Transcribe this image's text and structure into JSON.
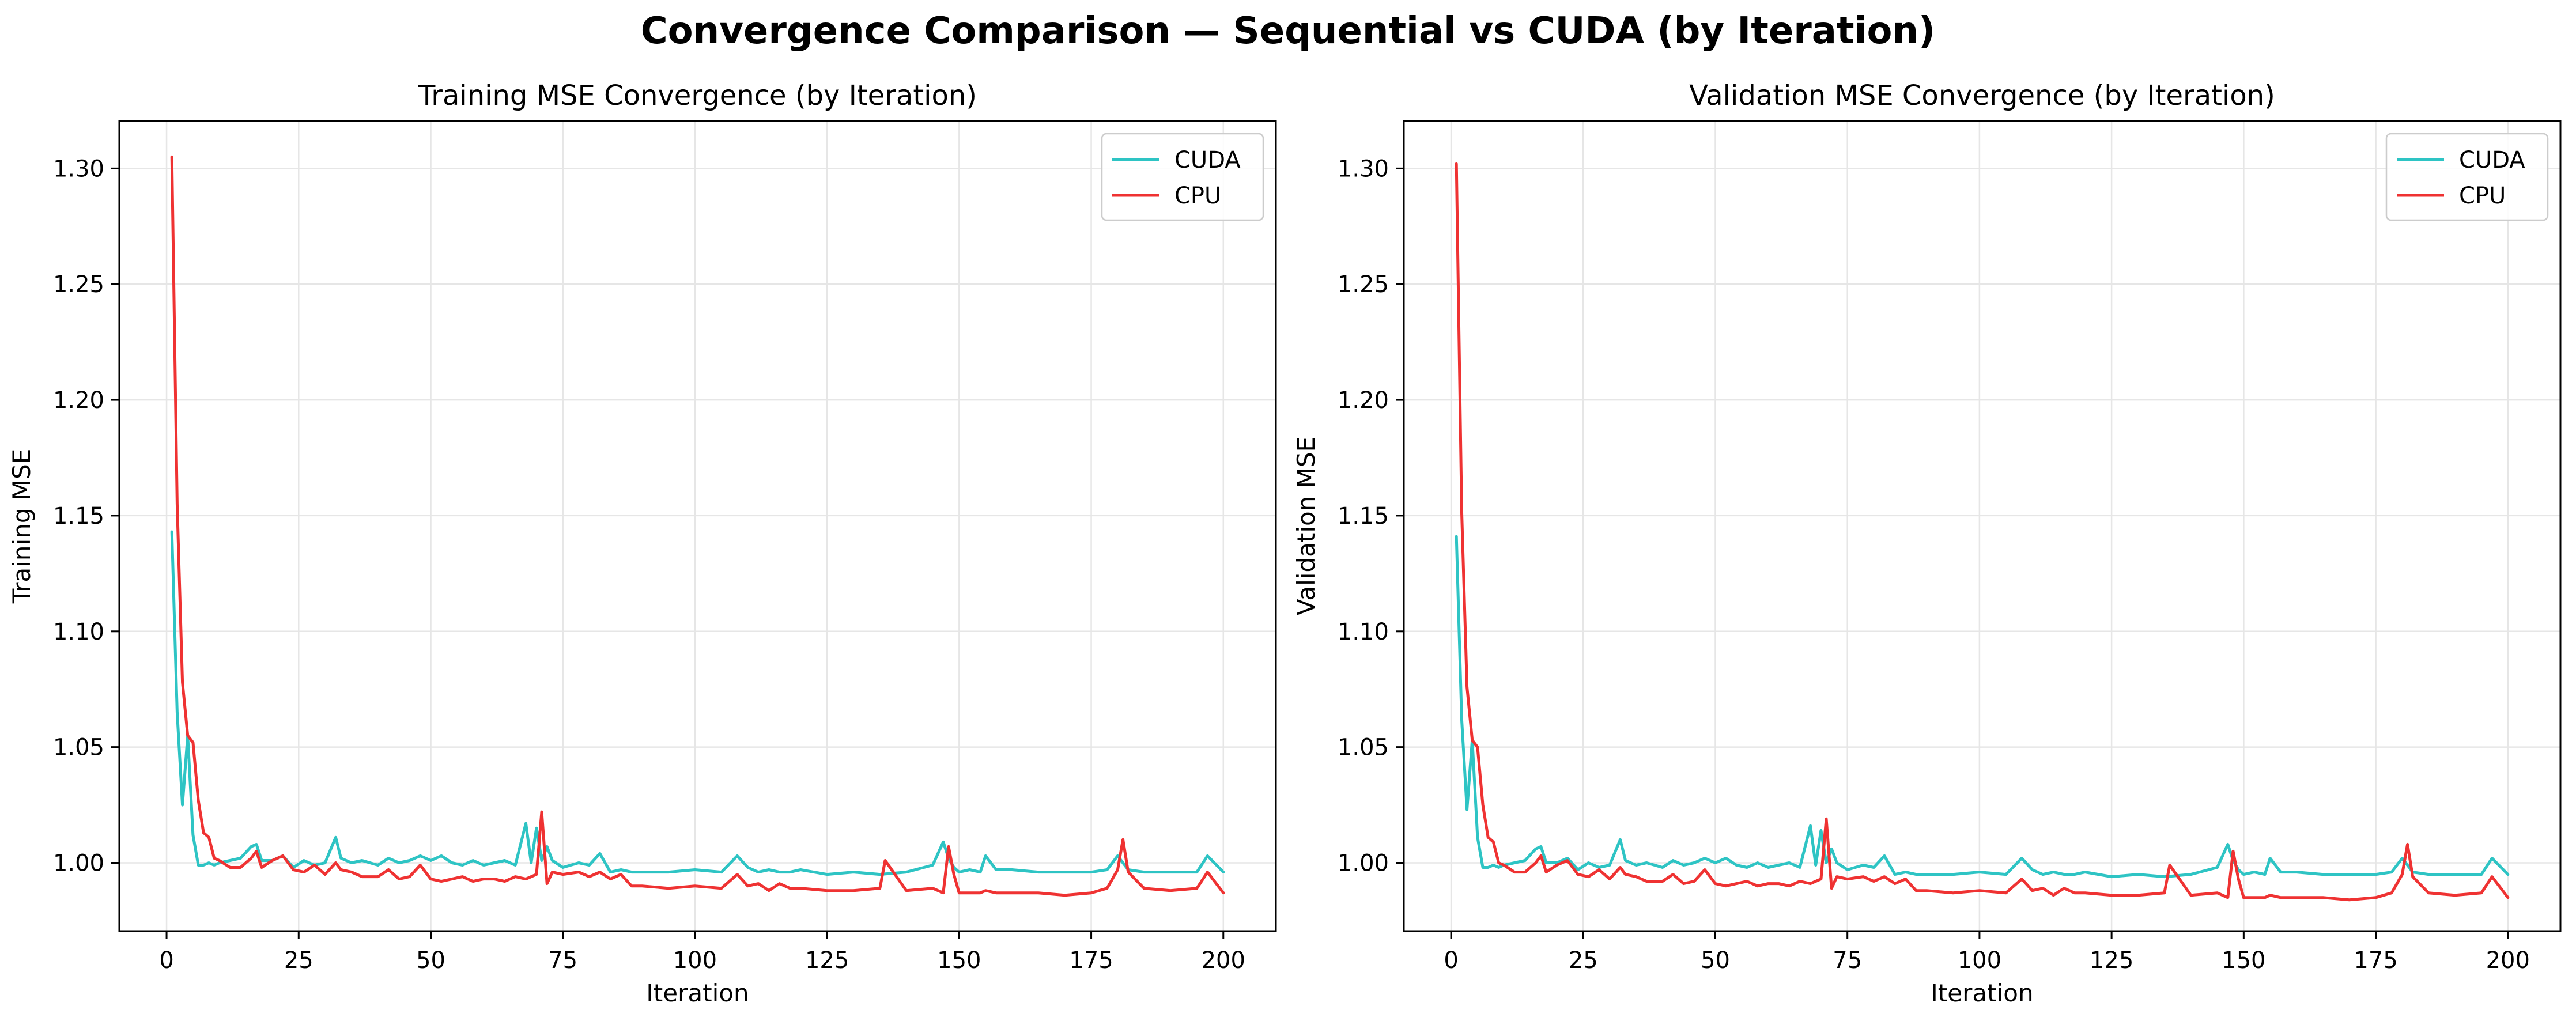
{
  "figure": {
    "suptitle": "Convergence Comparison — Sequential vs CUDA (by Iteration)"
  },
  "colors": {
    "CUDA": "#2ec4c4",
    "CPU": "#ef3232",
    "grid": "#e6e6e6",
    "axis": "#000000"
  },
  "chart_data": [
    {
      "type": "line",
      "title": "Training MSE Convergence (by Iteration)",
      "xlabel": "Iteration",
      "ylabel": "Training MSE",
      "xlim": [
        -8.95,
        209.95
      ],
      "ylim": [
        0.9705,
        1.3205
      ],
      "xticks": [
        0,
        25,
        50,
        75,
        100,
        125,
        150,
        175,
        200
      ],
      "yticks": [
        1.0,
        1.05,
        1.1,
        1.15,
        1.2,
        1.25,
        1.3
      ],
      "ytick_labels": [
        "1.00",
        "1.05",
        "1.10",
        "1.15",
        "1.20",
        "1.25",
        "1.30"
      ],
      "grid": true,
      "legend": "top-right",
      "series": [
        {
          "name": "CUDA",
          "x": [
            1,
            2,
            3,
            4,
            5,
            6,
            7,
            8,
            9,
            10,
            12,
            14,
            16,
            17,
            18,
            20,
            22,
            24,
            26,
            28,
            30,
            32,
            33,
            35,
            37,
            40,
            42,
            44,
            46,
            48,
            50,
            52,
            54,
            56,
            58,
            60,
            62,
            64,
            66,
            68,
            69,
            70,
            71,
            72,
            73,
            75,
            78,
            80,
            82,
            84,
            86,
            88,
            90,
            95,
            100,
            105,
            108,
            110,
            112,
            114,
            116,
            118,
            120,
            125,
            130,
            135,
            140,
            145,
            147,
            148,
            149,
            150,
            152,
            154,
            155,
            157,
            160,
            165,
            170,
            175,
            178,
            180,
            182,
            185,
            190,
            195,
            197,
            200
          ],
          "values": [
            1.143,
            1.065,
            1.025,
            1.055,
            1.012,
            0.999,
            0.999,
            1.0,
            0.999,
            1.0,
            1.001,
            1.002,
            1.007,
            1.008,
            1.001,
            1.001,
            1.003,
            0.998,
            1.001,
            0.999,
            1.0,
            1.011,
            1.002,
            1.0,
            1.001,
            0.999,
            1.002,
            1.0,
            1.001,
            1.003,
            1.001,
            1.003,
            1.0,
            0.999,
            1.001,
            0.999,
            1.0,
            1.001,
            0.999,
            1.017,
            1.0,
            1.015,
            1.001,
            1.007,
            1.001,
            0.998,
            1.0,
            0.999,
            1.004,
            0.996,
            0.997,
            0.996,
            0.996,
            0.996,
            0.997,
            0.996,
            1.003,
            0.998,
            0.996,
            0.997,
            0.996,
            0.996,
            0.997,
            0.995,
            0.996,
            0.995,
            0.996,
            0.999,
            1.009,
            1.002,
            0.998,
            0.996,
            0.997,
            0.996,
            1.003,
            0.997,
            0.997,
            0.996,
            0.996,
            0.996,
            0.997,
            1.003,
            0.997,
            0.996,
            0.996,
            0.996,
            1.003,
            0.996
          ]
        },
        {
          "name": "CPU",
          "x": [
            1,
            2,
            3,
            4,
            5,
            6,
            7,
            8,
            9,
            10,
            12,
            14,
            16,
            17,
            18,
            20,
            22,
            24,
            26,
            28,
            30,
            32,
            33,
            35,
            37,
            40,
            42,
            44,
            46,
            48,
            50,
            52,
            54,
            56,
            58,
            60,
            62,
            64,
            66,
            68,
            70,
            71,
            72,
            73,
            75,
            78,
            80,
            82,
            84,
            86,
            88,
            90,
            95,
            100,
            105,
            108,
            110,
            112,
            114,
            116,
            118,
            120,
            125,
            130,
            135,
            136,
            140,
            145,
            147,
            148,
            149,
            150,
            152,
            154,
            155,
            157,
            160,
            165,
            170,
            175,
            178,
            180,
            181,
            182,
            185,
            190,
            195,
            197,
            200
          ],
          "values": [
            1.305,
            1.155,
            1.078,
            1.055,
            1.052,
            1.027,
            1.013,
            1.011,
            1.002,
            1.001,
            0.998,
            0.998,
            1.002,
            1.005,
            0.998,
            1.001,
            1.003,
            0.997,
            0.996,
            0.999,
            0.995,
            1.0,
            0.997,
            0.996,
            0.994,
            0.994,
            0.997,
            0.993,
            0.994,
            0.999,
            0.993,
            0.992,
            0.993,
            0.994,
            0.992,
            0.993,
            0.993,
            0.992,
            0.994,
            0.993,
            0.995,
            1.022,
            0.991,
            0.996,
            0.995,
            0.996,
            0.994,
            0.996,
            0.993,
            0.995,
            0.99,
            0.99,
            0.989,
            0.99,
            0.989,
            0.995,
            0.99,
            0.991,
            0.988,
            0.991,
            0.989,
            0.989,
            0.988,
            0.988,
            0.989,
            1.001,
            0.988,
            0.989,
            0.987,
            1.007,
            0.995,
            0.987,
            0.987,
            0.987,
            0.988,
            0.987,
            0.987,
            0.987,
            0.986,
            0.987,
            0.989,
            0.997,
            1.01,
            0.996,
            0.989,
            0.988,
            0.989,
            0.996,
            0.987
          ]
        }
      ]
    },
    {
      "type": "line",
      "title": "Validation MSE Convergence (by Iteration)",
      "xlabel": "Iteration",
      "ylabel": "Validation MSE",
      "xlim": [
        -8.95,
        209.95
      ],
      "ylim": [
        0.9705,
        1.3205
      ],
      "xticks": [
        0,
        25,
        50,
        75,
        100,
        125,
        150,
        175,
        200
      ],
      "yticks": [
        1.0,
        1.05,
        1.1,
        1.15,
        1.2,
        1.25,
        1.3
      ],
      "ytick_labels": [
        "1.00",
        "1.05",
        "1.10",
        "1.15",
        "1.20",
        "1.25",
        "1.30"
      ],
      "grid": true,
      "legend": "top-right",
      "series": [
        {
          "name": "CUDA",
          "x": [
            1,
            2,
            3,
            4,
            5,
            6,
            7,
            8,
            9,
            10,
            12,
            14,
            16,
            17,
            18,
            20,
            22,
            24,
            26,
            28,
            30,
            32,
            33,
            35,
            37,
            40,
            42,
            44,
            46,
            48,
            50,
            52,
            54,
            56,
            58,
            60,
            62,
            64,
            66,
            68,
            69,
            70,
            71,
            72,
            73,
            75,
            78,
            80,
            82,
            84,
            86,
            88,
            90,
            95,
            100,
            105,
            108,
            110,
            112,
            114,
            116,
            118,
            120,
            125,
            130,
            135,
            140,
            145,
            147,
            148,
            149,
            150,
            152,
            154,
            155,
            157,
            160,
            165,
            170,
            175,
            178,
            180,
            182,
            185,
            190,
            195,
            197,
            200
          ],
          "values": [
            1.141,
            1.062,
            1.023,
            1.053,
            1.011,
            0.998,
            0.998,
            0.999,
            0.998,
            0.999,
            1.0,
            1.001,
            1.006,
            1.007,
            1.0,
            1.0,
            1.002,
            0.997,
            1.0,
            0.998,
            0.999,
            1.01,
            1.001,
            0.999,
            1.0,
            0.998,
            1.001,
            0.999,
            1.0,
            1.002,
            1.0,
            1.002,
            0.999,
            0.998,
            1.0,
            0.998,
            0.999,
            1.0,
            0.998,
            1.016,
            0.999,
            1.014,
            1.0,
            1.006,
            1.0,
            0.997,
            0.999,
            0.998,
            1.003,
            0.995,
            0.996,
            0.995,
            0.995,
            0.995,
            0.996,
            0.995,
            1.002,
            0.997,
            0.995,
            0.996,
            0.995,
            0.995,
            0.996,
            0.994,
            0.995,
            0.994,
            0.995,
            0.998,
            1.008,
            1.001,
            0.997,
            0.995,
            0.996,
            0.995,
            1.002,
            0.996,
            0.996,
            0.995,
            0.995,
            0.995,
            0.996,
            1.002,
            0.996,
            0.995,
            0.995,
            0.995,
            1.002,
            0.995
          ]
        },
        {
          "name": "CPU",
          "x": [
            1,
            2,
            3,
            4,
            5,
            6,
            7,
            8,
            9,
            10,
            12,
            14,
            16,
            17,
            18,
            20,
            22,
            24,
            26,
            28,
            30,
            32,
            33,
            35,
            37,
            40,
            42,
            44,
            46,
            48,
            50,
            52,
            54,
            56,
            58,
            60,
            62,
            64,
            66,
            68,
            70,
            71,
            72,
            73,
            75,
            78,
            80,
            82,
            84,
            86,
            88,
            90,
            95,
            100,
            105,
            108,
            110,
            112,
            114,
            116,
            118,
            120,
            125,
            130,
            135,
            136,
            140,
            145,
            147,
            148,
            149,
            150,
            152,
            154,
            155,
            157,
            160,
            165,
            170,
            175,
            178,
            180,
            181,
            182,
            185,
            190,
            195,
            197,
            200
          ],
          "values": [
            1.302,
            1.152,
            1.076,
            1.053,
            1.05,
            1.025,
            1.011,
            1.009,
            1.0,
            0.999,
            0.996,
            0.996,
            1.0,
            1.003,
            0.996,
            0.999,
            1.001,
            0.995,
            0.994,
            0.997,
            0.993,
            0.998,
            0.995,
            0.994,
            0.992,
            0.992,
            0.995,
            0.991,
            0.992,
            0.997,
            0.991,
            0.99,
            0.991,
            0.992,
            0.99,
            0.991,
            0.991,
            0.99,
            0.992,
            0.991,
            0.993,
            1.019,
            0.989,
            0.994,
            0.993,
            0.994,
            0.992,
            0.994,
            0.991,
            0.993,
            0.988,
            0.988,
            0.987,
            0.988,
            0.987,
            0.993,
            0.988,
            0.989,
            0.986,
            0.989,
            0.987,
            0.987,
            0.986,
            0.986,
            0.987,
            0.999,
            0.986,
            0.987,
            0.985,
            1.005,
            0.993,
            0.985,
            0.985,
            0.985,
            0.986,
            0.985,
            0.985,
            0.985,
            0.984,
            0.985,
            0.987,
            0.995,
            1.008,
            0.994,
            0.987,
            0.986,
            0.987,
            0.994,
            0.985
          ]
        }
      ]
    }
  ]
}
